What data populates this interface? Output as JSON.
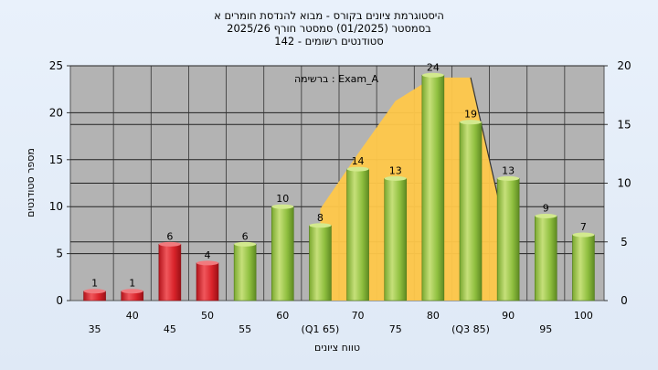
{
  "chart_data": {
    "type": "bar",
    "title_lines": [
      "היסטוגרמת ציונים בקורס - מבוא להנדסת חומרים א",
      "בסמסטר  (01/2025)  סמסטר חורף 2025/26",
      "סטודנטים רשומים - 142"
    ],
    "xlabel": "טווח ציונים",
    "ylabel": "מספר סטודנטים",
    "annotation": "ברשימה : Exam_A",
    "categories": [
      "35",
      "40",
      "45",
      "50",
      "55",
      "60",
      "(Q1 65)",
      "70",
      "75",
      "80",
      "(Q3 85)",
      "90",
      "95",
      "100"
    ],
    "values": [
      1,
      1,
      6,
      4,
      6,
      10,
      8,
      14,
      13,
      24,
      19,
      13,
      9,
      7
    ],
    "bar_colors": [
      "red",
      "red",
      "red",
      "red",
      "green",
      "green",
      "green",
      "green",
      "green",
      "green",
      "green",
      "green",
      "green",
      "green"
    ],
    "ylim_left": [
      0,
      25
    ],
    "yticks_left": [
      0,
      5,
      10,
      15,
      20,
      25
    ],
    "ylim_right": [
      0,
      20
    ],
    "yticks_right": [
      0,
      5,
      10,
      15,
      20
    ],
    "iqr_overlay": {
      "shape": "area",
      "color": "#ffc84a",
      "x_categories": [
        "(Q1 65)",
        "70",
        "75",
        "80",
        "(Q3 85)"
      ],
      "values_right_axis": [
        7.8,
        12.5,
        17,
        19,
        19
      ],
      "descends_to_category": "90"
    },
    "colors": {
      "red": "#d9232a",
      "green": "#8fbf3f",
      "plot_bg": "#b3b3b3",
      "overlay": "#ffc84a"
    },
    "grid": true,
    "legend": "none"
  }
}
